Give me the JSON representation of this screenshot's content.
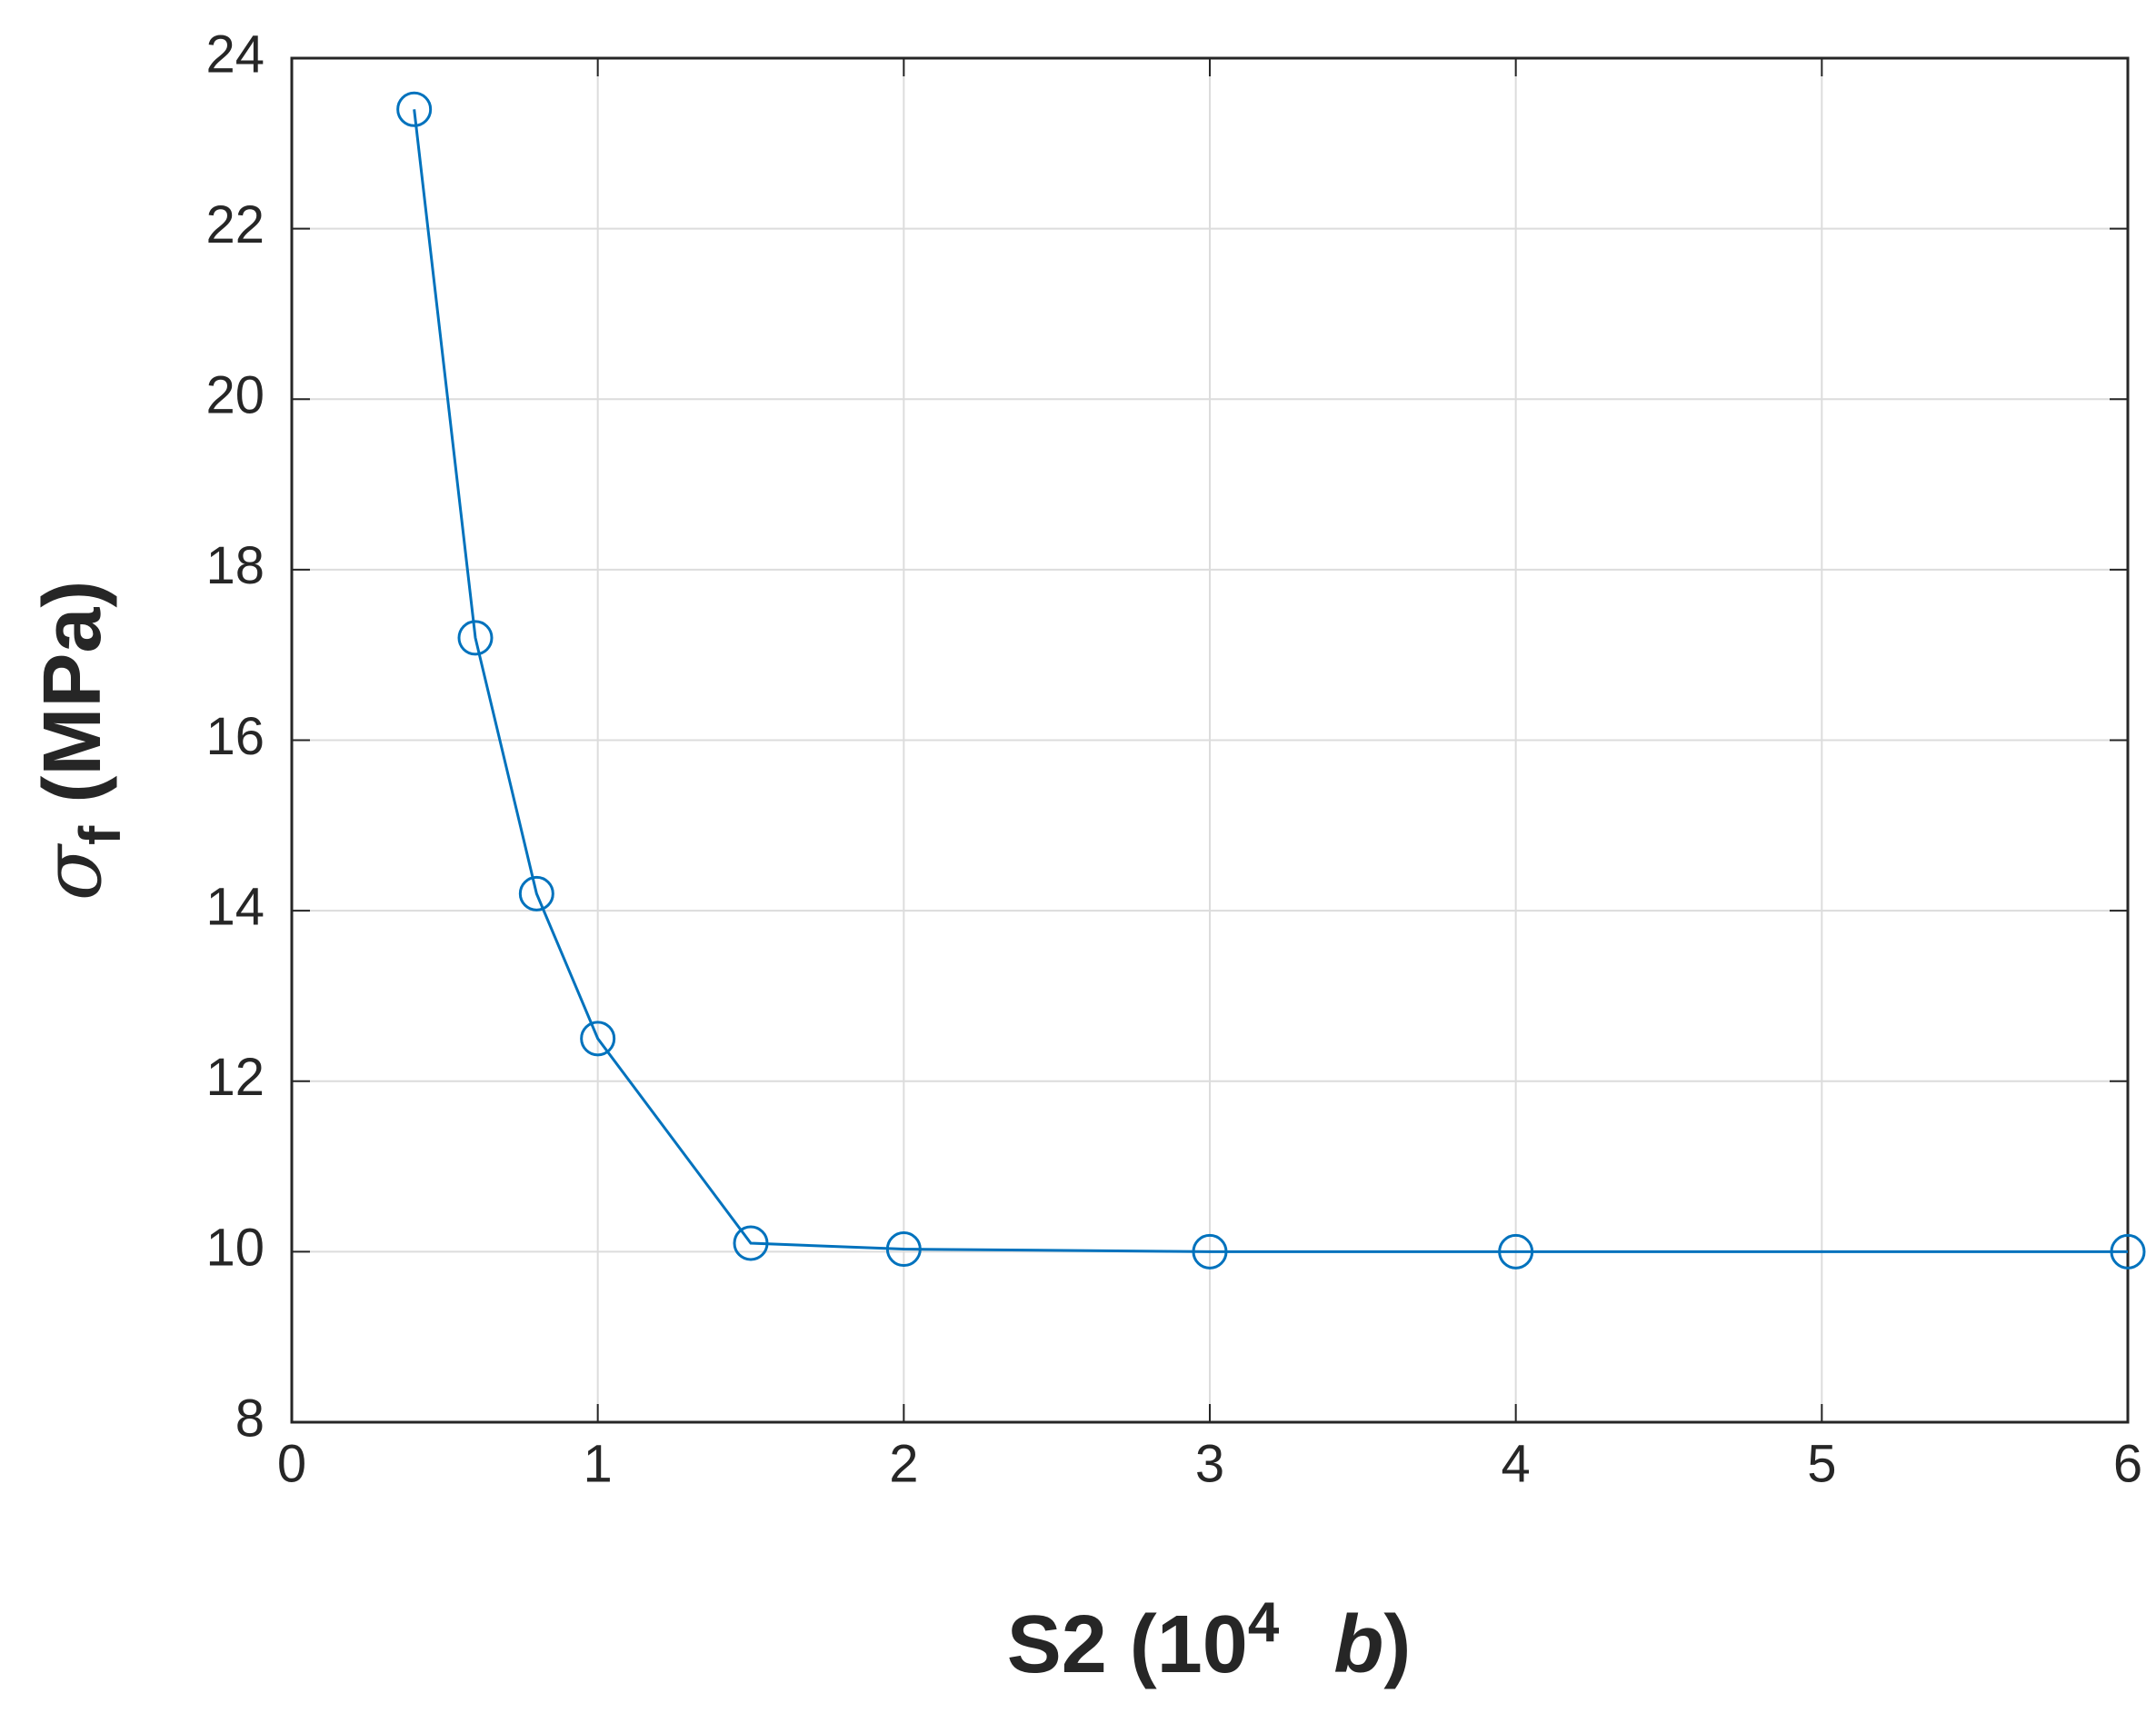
{
  "chart_data": {
    "type": "line",
    "x": [
      0.4,
      0.6,
      0.8,
      1,
      1.5,
      2,
      3,
      4,
      6
    ],
    "series": [
      {
        "color": "#0072BD",
        "values": [
          23.4,
          17.2,
          14.2,
          12.5,
          10.1,
          10.03,
          10,
          10,
          10
        ]
      }
    ],
    "xlim": [
      0,
      6
    ],
    "xticks": [
      0,
      1,
      2,
      3,
      4,
      5,
      6
    ],
    "ylim": [
      8,
      24
    ],
    "yticks": [
      8,
      10,
      12,
      14,
      16,
      18,
      20,
      22,
      24
    ],
    "grid": true,
    "xlabel": {
      "text": "S2 (10",
      "superscript": "4",
      "variable": "b",
      "close": ")"
    },
    "ylabel": {
      "symbol": "σ",
      "subscript": "f",
      "unit": " (MPa)"
    }
  }
}
